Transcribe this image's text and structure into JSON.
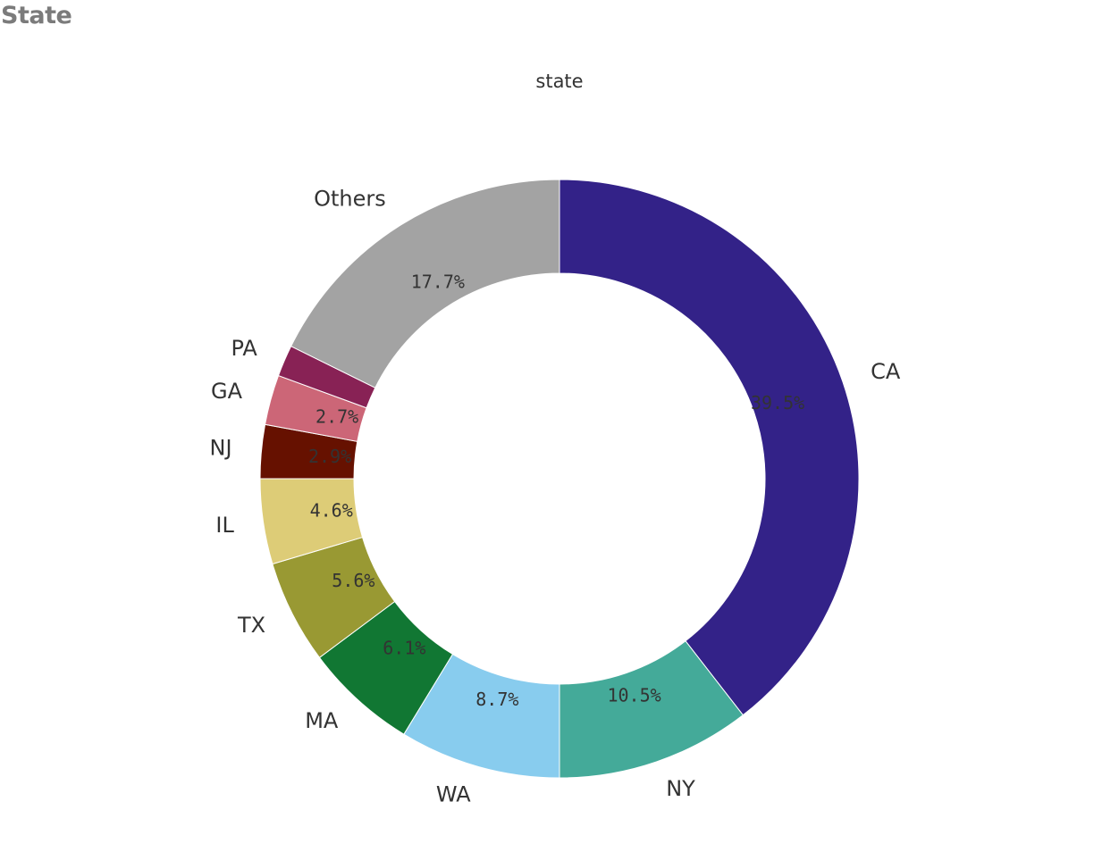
{
  "page_title": "State",
  "chart_data": {
    "type": "pie",
    "title": "state",
    "donut": true,
    "categories": [
      "CA",
      "NY",
      "WA",
      "MA",
      "TX",
      "IL",
      "NJ",
      "GA",
      "PA",
      "Others"
    ],
    "values": [
      39.5,
      10.5,
      8.7,
      6.1,
      5.6,
      4.6,
      2.9,
      2.7,
      1.7,
      17.7
    ],
    "value_labels": [
      "39.5%",
      "10.5%",
      "8.7%",
      "6.1%",
      "5.6%",
      "4.6%",
      "2.9%",
      "2.7%",
      "",
      "17.7%"
    ],
    "colors": [
      "#332288",
      "#44aa99",
      "#88ccee",
      "#117733",
      "#999933",
      "#ddcc77",
      "#661100",
      "#cc6677",
      "#882255",
      "#a3a3a3"
    ],
    "start_angle_deg": 0,
    "direction": "clockwise"
  }
}
